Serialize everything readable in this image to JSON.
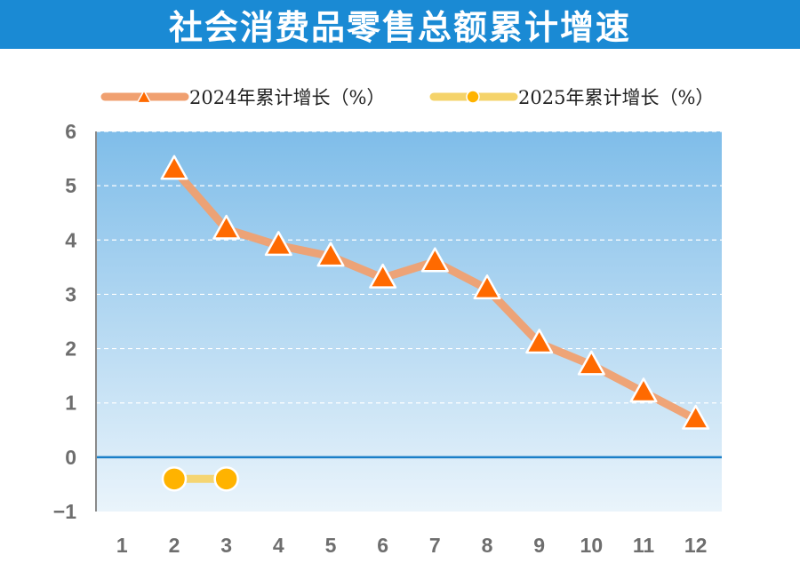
{
  "title": "社会消费品零售总额累计增速",
  "colors": {
    "title_bg": "#1a8ad4",
    "series_2024_line": "#f0a070",
    "series_2024_marker": "#ff6a00",
    "series_2025_line": "#f5d36a",
    "series_2025_marker": "#ffb300",
    "zero_line": "#1a7fc8",
    "plot_bg_top": "#7fbde9",
    "plot_bg_bottom": "#e8f3fb"
  },
  "chart_data": {
    "type": "line",
    "title": "社会消费品零售总额累计增速",
    "xlabel": "",
    "ylabel": "",
    "categories": [
      "1",
      "2",
      "3",
      "4",
      "5",
      "6",
      "7",
      "8",
      "9",
      "10",
      "11",
      "12"
    ],
    "ylim": [
      -1,
      6
    ],
    "yticks": [
      "6",
      "5",
      "4",
      "3",
      "2",
      "1",
      "0",
      "−1"
    ],
    "grid": true,
    "legend_position": "top",
    "series": [
      {
        "name": "2024年累计增长（%）",
        "marker": "triangle",
        "values": [
          null,
          5.3,
          4.2,
          3.9,
          3.7,
          3.3,
          3.6,
          3.1,
          2.1,
          1.7,
          1.2,
          0.7
        ]
      },
      {
        "name": "2025年累计增长（%）",
        "marker": "circle",
        "values": [
          null,
          -0.4,
          -0.4,
          null,
          null,
          null,
          null,
          null,
          null,
          null,
          null,
          null
        ]
      }
    ]
  }
}
